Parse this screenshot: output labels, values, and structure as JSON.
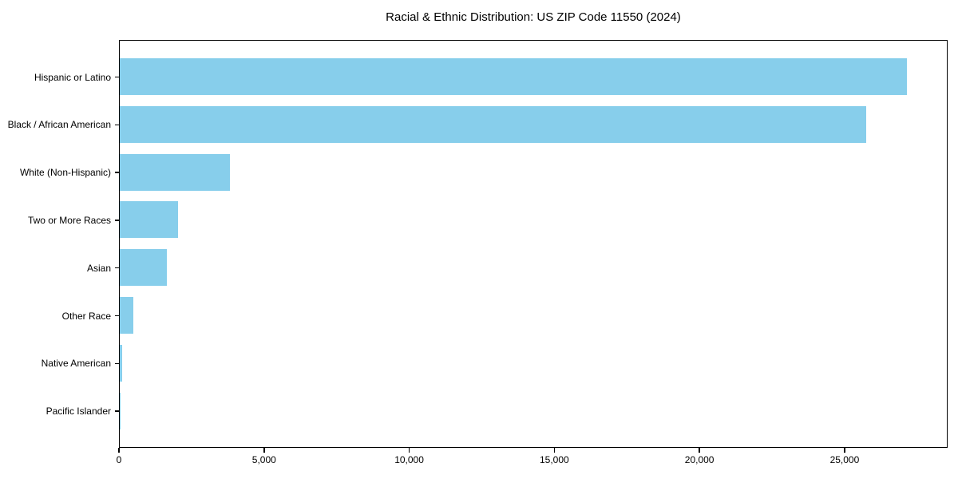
{
  "chart_data": {
    "type": "bar",
    "orientation": "horizontal",
    "title": "Racial & Ethnic Distribution: US ZIP Code 11550 (2024)",
    "categories": [
      "Hispanic or Latino",
      "Black / African American",
      "White (Non-Hispanic)",
      "Two or More Races",
      "Asian",
      "Other Race",
      "Native American",
      "Pacific Islander"
    ],
    "values": [
      27160,
      25780,
      3815,
      2010,
      1630,
      460,
      80,
      20
    ],
    "xlabel": "",
    "ylabel": "",
    "xlim": [
      0,
      28550
    ],
    "x_ticks": [
      0,
      5000,
      10000,
      15000,
      20000,
      25000
    ],
    "x_tick_labels": [
      "0",
      "5,000",
      "10,000",
      "15,000",
      "20,000",
      "25,000"
    ],
    "bar_color": "#87CEEB",
    "axis_color": "#000000",
    "background_color": "#FFFFFF",
    "grid": false,
    "legend_position": "none"
  }
}
